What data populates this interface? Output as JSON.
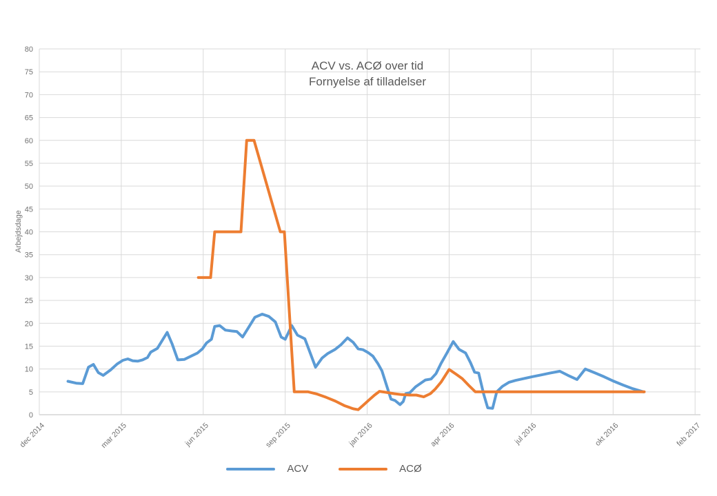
{
  "chart_data": {
    "type": "line",
    "title": "ACV vs. ACØ over tid",
    "subtitle": "Fornyelse af tilladelser",
    "ylabel": "Arbejdsdage",
    "ylim": [
      0,
      80
    ],
    "yticks": [
      0,
      5,
      10,
      15,
      20,
      25,
      30,
      35,
      40,
      45,
      50,
      55,
      60,
      65,
      70,
      75,
      80
    ],
    "x_tick_labels": [
      "dec 2014",
      "mar 2015",
      "jun 2015",
      "sep 2015",
      "jan 2016",
      "apr 2016",
      "jul 2016",
      "okt 2016",
      "feb 2017"
    ],
    "grid": true,
    "legend_position": "bottom",
    "grid_color": "#D9D9D9",
    "axis_color": "#BFBFBF",
    "title_color": "#595959",
    "tick_text_color": "#737373",
    "series": [
      {
        "name": "ACV",
        "color": "#5B9BD5",
        "points": [
          [
            0.35,
            7.3
          ],
          [
            0.45,
            6.9
          ],
          [
            0.53,
            6.8
          ],
          [
            0.6,
            10.4
          ],
          [
            0.66,
            11.0
          ],
          [
            0.72,
            9.2
          ],
          [
            0.78,
            8.6
          ],
          [
            0.87,
            9.8
          ],
          [
            0.95,
            11.1
          ],
          [
            1.02,
            11.9
          ],
          [
            1.08,
            12.2
          ],
          [
            1.14,
            11.8
          ],
          [
            1.2,
            11.7
          ],
          [
            1.26,
            12.0
          ],
          [
            1.32,
            12.5
          ],
          [
            1.36,
            13.7
          ],
          [
            1.44,
            14.5
          ],
          [
            1.56,
            18.0
          ],
          [
            1.62,
            15.5
          ],
          [
            1.69,
            12.0
          ],
          [
            1.77,
            12.1
          ],
          [
            1.86,
            12.9
          ],
          [
            1.93,
            13.5
          ],
          [
            1.99,
            14.4
          ],
          [
            2.04,
            15.7
          ],
          [
            2.1,
            16.5
          ],
          [
            2.14,
            19.3
          ],
          [
            2.2,
            19.5
          ],
          [
            2.27,
            18.5
          ],
          [
            2.35,
            18.3
          ],
          [
            2.41,
            18.2
          ],
          [
            2.48,
            17.0
          ],
          [
            2.55,
            19.0
          ],
          [
            2.63,
            21.3
          ],
          [
            2.72,
            22.0
          ],
          [
            2.8,
            21.5
          ],
          [
            2.88,
            20.3
          ],
          [
            2.95,
            17.0
          ],
          [
            3.0,
            16.5
          ],
          [
            3.08,
            19.5
          ],
          [
            3.15,
            17.4
          ],
          [
            3.24,
            16.6
          ],
          [
            3.37,
            10.4
          ],
          [
            3.45,
            12.4
          ],
          [
            3.52,
            13.4
          ],
          [
            3.61,
            14.3
          ],
          [
            3.68,
            15.3
          ],
          [
            3.76,
            16.8
          ],
          [
            3.83,
            15.8
          ],
          [
            3.89,
            14.4
          ],
          [
            3.95,
            14.2
          ],
          [
            4.01,
            13.6
          ],
          [
            4.07,
            12.8
          ],
          [
            4.13,
            11.2
          ],
          [
            4.18,
            9.6
          ],
          [
            4.23,
            6.8
          ],
          [
            4.29,
            3.4
          ],
          [
            4.34,
            3.1
          ],
          [
            4.4,
            2.2
          ],
          [
            4.44,
            2.9
          ],
          [
            4.47,
            4.6
          ],
          [
            4.52,
            4.8
          ],
          [
            4.59,
            6.1
          ],
          [
            4.67,
            7.1
          ],
          [
            4.71,
            7.6
          ],
          [
            4.78,
            7.8
          ],
          [
            4.84,
            9.0
          ],
          [
            4.9,
            11.2
          ],
          [
            4.97,
            13.4
          ],
          [
            5.05,
            16.0
          ],
          [
            5.12,
            14.3
          ],
          [
            5.2,
            13.5
          ],
          [
            5.26,
            11.4
          ],
          [
            5.31,
            9.3
          ],
          [
            5.36,
            9.1
          ],
          [
            5.42,
            4.6
          ],
          [
            5.47,
            1.5
          ],
          [
            5.53,
            1.4
          ],
          [
            5.58,
            5.0
          ],
          [
            5.65,
            6.2
          ],
          [
            5.73,
            7.1
          ],
          [
            5.81,
            7.5
          ],
          [
            5.91,
            7.9
          ],
          [
            6.01,
            8.3
          ],
          [
            6.12,
            8.7
          ],
          [
            6.23,
            9.1
          ],
          [
            6.35,
            9.5
          ],
          [
            6.45,
            8.6
          ],
          [
            6.56,
            7.7
          ],
          [
            6.66,
            10.0
          ],
          [
            6.77,
            9.2
          ],
          [
            6.89,
            8.3
          ],
          [
            7.01,
            7.3
          ],
          [
            7.12,
            6.5
          ],
          [
            7.24,
            5.7
          ],
          [
            7.37,
            5.0
          ]
        ]
      },
      {
        "name": "ACØ",
        "color": "#ED7D31",
        "points": [
          [
            1.94,
            30
          ],
          [
            2.02,
            30
          ],
          [
            2.09,
            30
          ],
          [
            2.14,
            40
          ],
          [
            2.21,
            40
          ],
          [
            2.46,
            40
          ],
          [
            2.53,
            60
          ],
          [
            2.62,
            60
          ],
          [
            2.94,
            40
          ],
          [
            2.99,
            40
          ],
          [
            3.11,
            5
          ],
          [
            3.28,
            5
          ],
          [
            3.39,
            4.5
          ],
          [
            3.5,
            3.8
          ],
          [
            3.61,
            3.0
          ],
          [
            3.72,
            2.0
          ],
          [
            3.83,
            1.3
          ],
          [
            3.89,
            1.1
          ],
          [
            3.96,
            2.2
          ],
          [
            4.02,
            3.2
          ],
          [
            4.09,
            4.3
          ],
          [
            4.15,
            5.1
          ],
          [
            4.23,
            4.9
          ],
          [
            4.33,
            4.6
          ],
          [
            4.42,
            4.4
          ],
          [
            4.52,
            4.3
          ],
          [
            4.6,
            4.3
          ],
          [
            4.69,
            3.9
          ],
          [
            4.77,
            4.6
          ],
          [
            4.83,
            5.6
          ],
          [
            4.9,
            7.1
          ],
          [
            5.0,
            9.9
          ],
          [
            5.09,
            8.8
          ],
          [
            5.16,
            7.9
          ],
          [
            5.24,
            6.4
          ],
          [
            5.32,
            5.0
          ],
          [
            7.38,
            5.0
          ]
        ]
      }
    ]
  }
}
